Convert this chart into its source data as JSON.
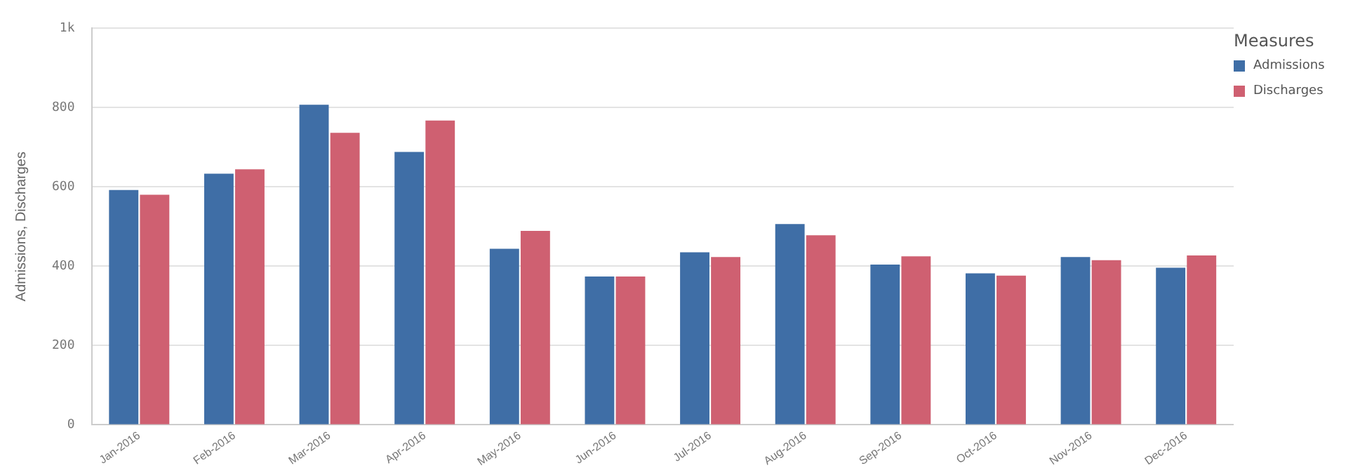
{
  "chart_data": {
    "type": "bar",
    "ylabel": "Admissions, Discharges",
    "legend_title": "Measures",
    "legend": "top right",
    "grid": "y",
    "categories": [
      "Jan-2016",
      "Feb-2016",
      "Mar-2016",
      "Apr-2016",
      "May-2016",
      "Jun-2016",
      "Jul-2016",
      "Aug-2016",
      "Sep-2016",
      "Oct-2016",
      "Nov-2016",
      "Dec-2016"
    ],
    "series": [
      {
        "name": "Admissions",
        "color": "#3f6ea6",
        "values": [
          592,
          633,
          807,
          688,
          444,
          374,
          435,
          506,
          404,
          382,
          423,
          396
        ]
      },
      {
        "name": "Discharges",
        "color": "#cf6071",
        "values": [
          580,
          644,
          736,
          767,
          489,
          374,
          423,
          478,
          425,
          376,
          415,
          427
        ]
      }
    ],
    "ylim": [
      0,
      1000
    ],
    "yticks": [
      0,
      200,
      400,
      600,
      800,
      {
        "value": 1000,
        "label": "1k"
      }
    ]
  }
}
